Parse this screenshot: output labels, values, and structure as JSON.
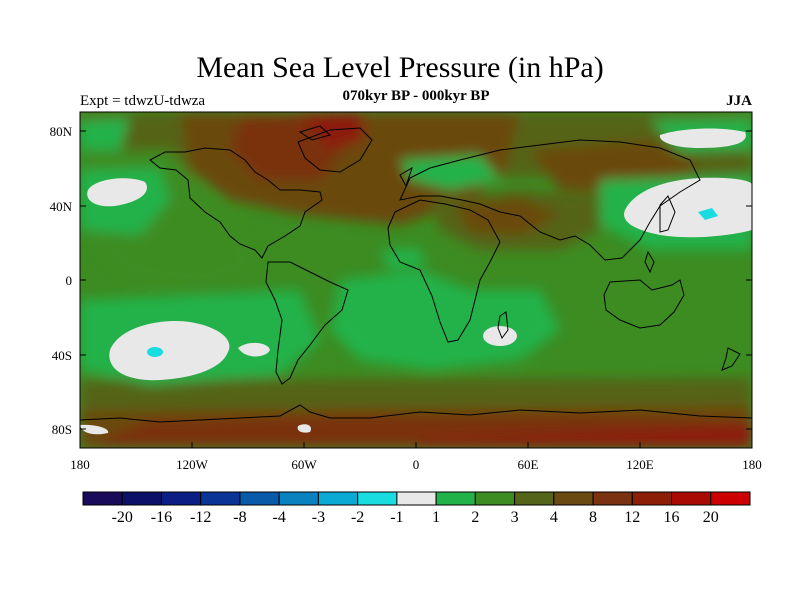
{
  "title": "Mean Sea Level Pressure (in hPa)",
  "subtitle": "070kyr BP - 000kyr BP",
  "experiment": "Expt = tdwzU-tdwza",
  "season": "JJA",
  "lat_ticks": [
    "80N",
    "40N",
    "0",
    "40S",
    "80S"
  ],
  "lon_ticks": [
    "180",
    "120W",
    "60W",
    "0",
    "60E",
    "120E",
    "180"
  ],
  "colorbar": {
    "labels": [
      "-20",
      "-16",
      "-12",
      "-8",
      "-4",
      "-3",
      "-2",
      "-1",
      "1",
      "2",
      "3",
      "4",
      "8",
      "12",
      "16",
      "20"
    ],
    "colors": [
      "#1a0a5a",
      "#0c1068",
      "#0a1e84",
      "#0a3496",
      "#0a5aaa",
      "#0a82c0",
      "#0aaad4",
      "#18dce0",
      "#e8e8e8",
      "#22b24a",
      "#3c8c22",
      "#546418",
      "#6a4a10",
      "#7a3210",
      "#8c1e08",
      "#aa0a04",
      "#cc0000"
    ]
  }
}
